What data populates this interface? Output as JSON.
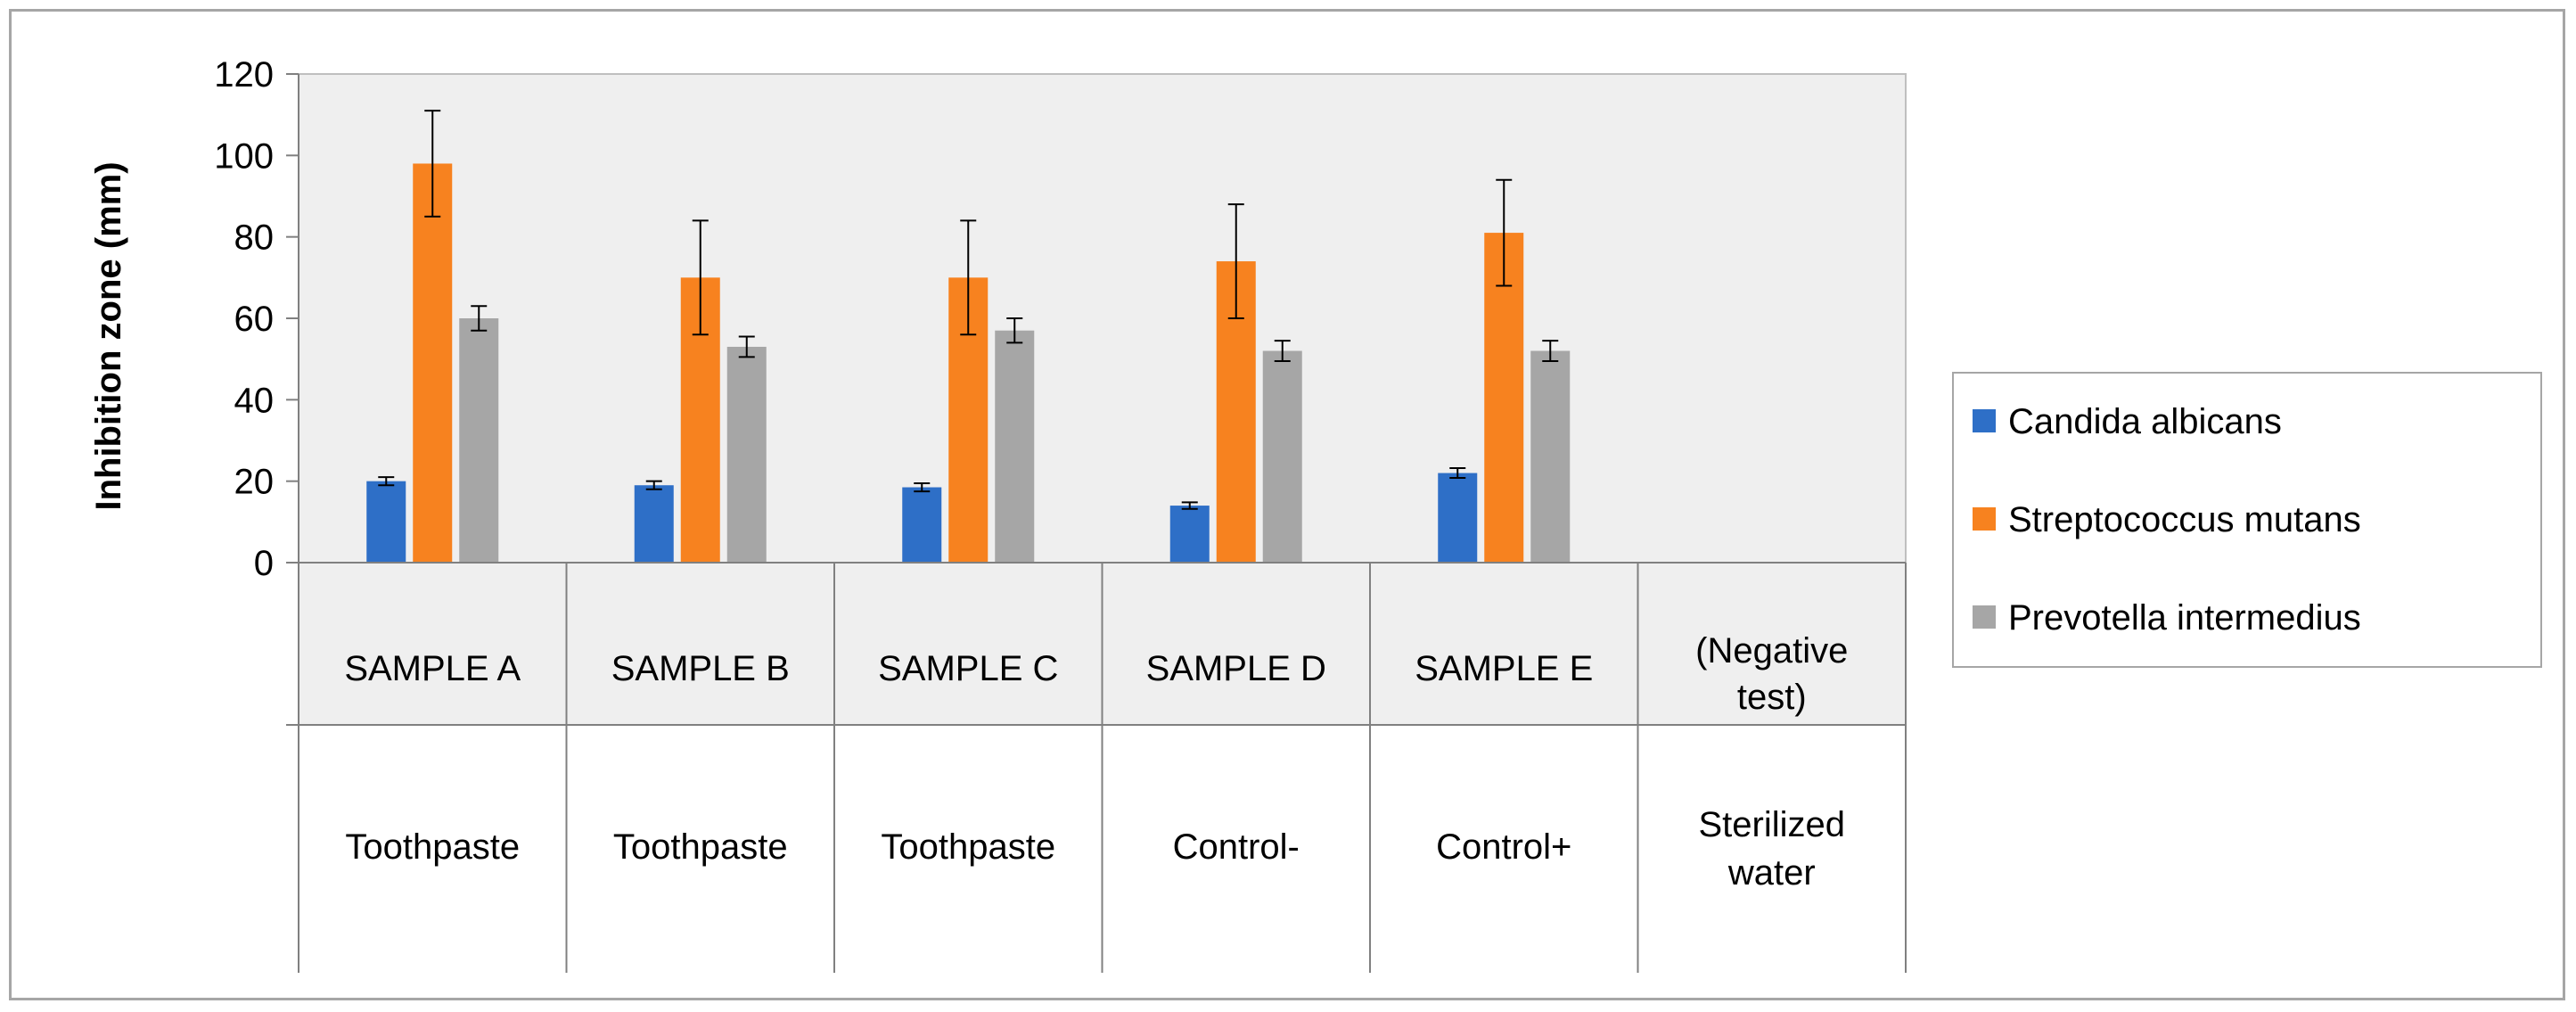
{
  "chart_data": {
    "type": "bar",
    "title": "",
    "xlabel": "",
    "ylabel": "Inhibition zone (mm)",
    "ylim": [
      0,
      120
    ],
    "yticks": [
      0,
      20,
      40,
      60,
      80,
      100,
      120
    ],
    "grid": false,
    "legend_position": "right",
    "categories": [
      {
        "sample": "SAMPLE A",
        "group": "Toothpaste"
      },
      {
        "sample": "SAMPLE B",
        "group": "Toothpaste"
      },
      {
        "sample": "SAMPLE C",
        "group": "Toothpaste"
      },
      {
        "sample": "SAMPLE D",
        "group": "Control-"
      },
      {
        "sample": "SAMPLE E",
        "group": "Control+"
      },
      {
        "sample": "(Negative test)",
        "group": "Sterilized water"
      }
    ],
    "series": [
      {
        "name": "Candida albicans",
        "color": "#2e6fc7",
        "values": [
          20,
          19,
          18.5,
          14,
          22,
          0
        ],
        "errors": [
          1,
          1,
          1,
          0.8,
          1.2,
          0
        ]
      },
      {
        "name": "Streptococcus mutans",
        "color": "#f7821f",
        "values": [
          98,
          70,
          70,
          74,
          81,
          0
        ],
        "errors": [
          13,
          14,
          14,
          14,
          13,
          0
        ]
      },
      {
        "name": "Prevotella intermedius",
        "color": "#a6a6a6",
        "values": [
          60,
          53,
          57,
          52,
          52,
          0
        ],
        "errors": [
          3,
          2.5,
          3,
          2.5,
          2.5,
          0
        ]
      }
    ]
  }
}
